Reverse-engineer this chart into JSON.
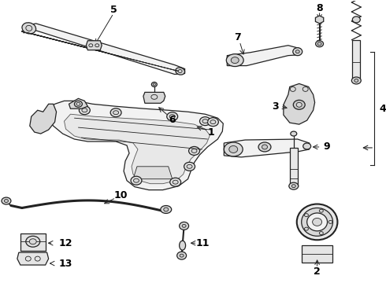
{
  "background_color": "#ffffff",
  "line_color": "#222222",
  "label_color": "#000000",
  "figsize": [
    4.9,
    3.6
  ],
  "dpi": 100,
  "lw_main": 0.9,
  "lw_thick": 1.5,
  "lw_thin": 0.6,
  "fc_part": "#f2f2f2",
  "fc_dark": "#d8d8d8"
}
